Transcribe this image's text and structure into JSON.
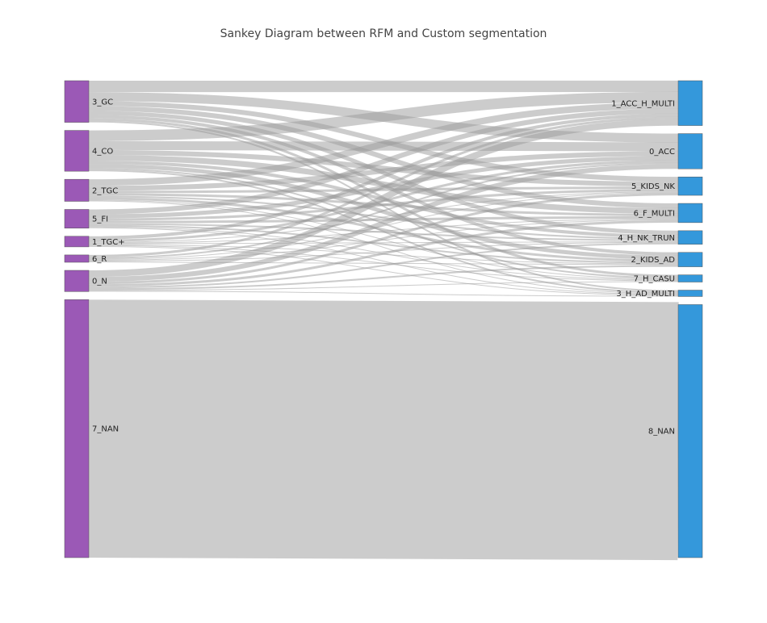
{
  "title": "Sankey Diagram between RFM and Custom segmentation",
  "colors": {
    "left_node": "#9b59b6",
    "right_node": "#3498db",
    "link": "#999999",
    "node_border": "#555555"
  },
  "chart_data": {
    "type": "sankey",
    "title": "Sankey Diagram between RFM and Custom segmentation",
    "left_nodes": [
      {
        "id": "3_GC",
        "label": "3_GC"
      },
      {
        "id": "4_CO",
        "label": "4_CO"
      },
      {
        "id": "2_TGC",
        "label": "2_TGC"
      },
      {
        "id": "5_FI",
        "label": "5_FI"
      },
      {
        "id": "1_TGC+",
        "label": "1_TGC+"
      },
      {
        "id": "6_R",
        "label": "6_R"
      },
      {
        "id": "0_N",
        "label": "0_N"
      },
      {
        "id": "7_NAN",
        "label": "7_NAN"
      }
    ],
    "right_nodes": [
      {
        "id": "1_ACC_H_MULTI",
        "label": "1_ACC_H_MULTI"
      },
      {
        "id": "0_ACC",
        "label": "0_ACC"
      },
      {
        "id": "5_KIDS_NK",
        "label": "5_KIDS_NK"
      },
      {
        "id": "6_F_MULTI",
        "label": "6_F_MULTI"
      },
      {
        "id": "4_H_NK_TRUN",
        "label": "4_H_NK_TRUN"
      },
      {
        "id": "2_KIDS_AD",
        "label": "2_KIDS_AD"
      },
      {
        "id": "7_H_CASU",
        "label": "7_H_CASU"
      },
      {
        "id": "3_H_AD_MULTI",
        "label": "3_H_AD_MULTI"
      },
      {
        "id": "8_NAN",
        "label": "8_NAN"
      }
    ],
    "links": [
      {
        "source": "3_GC",
        "target": "1_ACC_H_MULTI",
        "value": 14
      },
      {
        "source": "3_GC",
        "target": "0_ACC",
        "value": 11
      },
      {
        "source": "3_GC",
        "target": "5_KIDS_NK",
        "value": 6
      },
      {
        "source": "3_GC",
        "target": "6_F_MULTI",
        "value": 6
      },
      {
        "source": "3_GC",
        "target": "4_H_NK_TRUN",
        "value": 5
      },
      {
        "source": "3_GC",
        "target": "2_KIDS_AD",
        "value": 4
      },
      {
        "source": "3_GC",
        "target": "7_H_CASU",
        "value": 3
      },
      {
        "source": "3_GC",
        "target": "3_H_AD_MULTI",
        "value": 2
      },
      {
        "source": "4_CO",
        "target": "1_ACC_H_MULTI",
        "value": 13
      },
      {
        "source": "4_CO",
        "target": "0_ACC",
        "value": 11
      },
      {
        "source": "4_CO",
        "target": "5_KIDS_NK",
        "value": 6
      },
      {
        "source": "4_CO",
        "target": "6_F_MULTI",
        "value": 7
      },
      {
        "source": "4_CO",
        "target": "4_H_NK_TRUN",
        "value": 4
      },
      {
        "source": "4_CO",
        "target": "2_KIDS_AD",
        "value": 5
      },
      {
        "source": "4_CO",
        "target": "7_H_CASU",
        "value": 2
      },
      {
        "source": "4_CO",
        "target": "3_H_AD_MULTI",
        "value": 2
      },
      {
        "source": "2_TGC",
        "target": "1_ACC_H_MULTI",
        "value": 8
      },
      {
        "source": "2_TGC",
        "target": "0_ACC",
        "value": 6
      },
      {
        "source": "2_TGC",
        "target": "5_KIDS_NK",
        "value": 3
      },
      {
        "source": "2_TGC",
        "target": "6_F_MULTI",
        "value": 3
      },
      {
        "source": "2_TGC",
        "target": "4_H_NK_TRUN",
        "value": 2
      },
      {
        "source": "2_TGC",
        "target": "2_KIDS_AD",
        "value": 3
      },
      {
        "source": "2_TGC",
        "target": "7_H_CASU",
        "value": 1
      },
      {
        "source": "2_TGC",
        "target": "3_H_AD_MULTI",
        "value": 1
      },
      {
        "source": "5_FI",
        "target": "1_ACC_H_MULTI",
        "value": 6
      },
      {
        "source": "5_FI",
        "target": "0_ACC",
        "value": 5
      },
      {
        "source": "5_FI",
        "target": "5_KIDS_NK",
        "value": 3
      },
      {
        "source": "5_FI",
        "target": "6_F_MULTI",
        "value": 3
      },
      {
        "source": "5_FI",
        "target": "4_H_NK_TRUN",
        "value": 2
      },
      {
        "source": "5_FI",
        "target": "2_KIDS_AD",
        "value": 2
      },
      {
        "source": "5_FI",
        "target": "7_H_CASU",
        "value": 1
      },
      {
        "source": "5_FI",
        "target": "3_H_AD_MULTI",
        "value": 1
      },
      {
        "source": "1_TGC+",
        "target": "1_ACC_H_MULTI",
        "value": 4
      },
      {
        "source": "1_TGC+",
        "target": "0_ACC",
        "value": 3
      },
      {
        "source": "1_TGC+",
        "target": "5_KIDS_NK",
        "value": 1
      },
      {
        "source": "1_TGC+",
        "target": "6_F_MULTI",
        "value": 1
      },
      {
        "source": "1_TGC+",
        "target": "4_H_NK_TRUN",
        "value": 1
      },
      {
        "source": "1_TGC+",
        "target": "2_KIDS_AD",
        "value": 1
      },
      {
        "source": "1_TGC+",
        "target": "7_H_CASU",
        "value": 1
      },
      {
        "source": "1_TGC+",
        "target": "3_H_AD_MULTI",
        "value": 1
      },
      {
        "source": "6_R",
        "target": "1_ACC_H_MULTI",
        "value": 3
      },
      {
        "source": "6_R",
        "target": "0_ACC",
        "value": 2
      },
      {
        "source": "6_R",
        "target": "5_KIDS_NK",
        "value": 1
      },
      {
        "source": "6_R",
        "target": "6_F_MULTI",
        "value": 1
      },
      {
        "source": "6_R",
        "target": "4_H_NK_TRUN",
        "value": 1
      },
      {
        "source": "6_R",
        "target": "2_KIDS_AD",
        "value": 1
      },
      {
        "source": "0_N",
        "target": "1_ACC_H_MULTI",
        "value": 8
      },
      {
        "source": "0_N",
        "target": "0_ACC",
        "value": 6
      },
      {
        "source": "0_N",
        "target": "5_KIDS_NK",
        "value": 3
      },
      {
        "source": "0_N",
        "target": "6_F_MULTI",
        "value": 3
      },
      {
        "source": "0_N",
        "target": "4_H_NK_TRUN",
        "value": 2
      },
      {
        "source": "0_N",
        "target": "2_KIDS_AD",
        "value": 2
      },
      {
        "source": "0_N",
        "target": "7_H_CASU",
        "value": 1
      },
      {
        "source": "0_N",
        "target": "3_H_AD_MULTI",
        "value": 1
      },
      {
        "source": "7_NAN",
        "target": "8_NAN",
        "value": 316
      }
    ]
  }
}
